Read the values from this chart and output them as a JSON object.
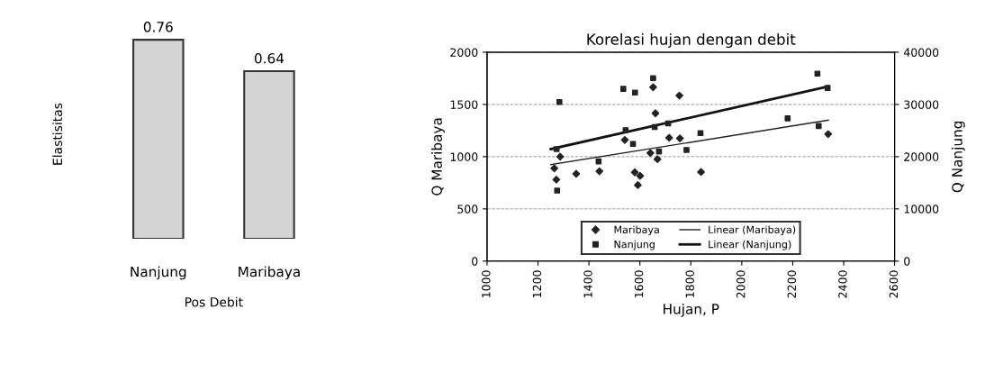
{
  "chart_data": [
    {
      "type": "bar",
      "xlabel": "Pos Debit",
      "ylabel": "Elastisitas",
      "categories": [
        "Nanjung",
        "Maribaya"
      ],
      "values": [
        0.76,
        0.64
      ],
      "color": "#d4d4d4",
      "data_labels": true,
      "tick_labels": "x"
    },
    {
      "type": "scatter",
      "title": "Korelasi hujan dengan debit",
      "xlabel": "Hujan, P",
      "ylabel": "Q Maribaya",
      "y2label": "Q Nanjung",
      "xlim": [
        1000,
        2600
      ],
      "xticks": [
        1000,
        1200,
        1400,
        1600,
        1800,
        2000,
        2200,
        2400,
        2600
      ],
      "ylim": [
        0,
        2000
      ],
      "yticks": [
        0,
        500,
        1000,
        1500,
        2000
      ],
      "y2lim": [
        0,
        40000
      ],
      "y2ticks": [
        0,
        10000,
        20000,
        30000,
        40000
      ],
      "grid": "y",
      "legend": "bottom",
      "series": [
        {
          "name": "Maribaya",
          "color": "#222222",
          "marker": "diamond",
          "x": [
            1264,
            1272,
            1287,
            1350,
            1441,
            1541,
            1580,
            1592,
            1601,
            1641,
            1652,
            1661,
            1669,
            1715,
            1755,
            1757,
            1840,
            2339
          ],
          "values": [
            888,
            780,
            1000,
            836,
            860,
            1160,
            850,
            728,
            816,
            1035,
            1665,
            1415,
            976,
            1181,
            1585,
            1175,
            853,
            1216
          ]
        },
        {
          "name": "Nanjung",
          "color": "#222222",
          "marker": "square",
          "axis": "y2",
          "x": [
            1273,
            1275,
            1284,
            1438,
            1535,
            1544,
            1573,
            1581,
            1652,
            1658,
            1675,
            1711,
            1783,
            1838,
            2180,
            2297,
            2302,
            2337
          ],
          "values": [
            21450,
            13500,
            30470,
            19100,
            32980,
            25080,
            22450,
            32270,
            35030,
            25660,
            20990,
            26360,
            21280,
            24500,
            27330,
            35900,
            25870,
            33150
          ]
        },
        {
          "name": "Linear (Maribaya)",
          "type": "line",
          "color": "#222222",
          "x": [
            1250,
            2340
          ],
          "values": [
            923,
            1350
          ]
        },
        {
          "name": "Linear (Nanjung)",
          "type": "line",
          "color": "#111111",
          "axis": "y2",
          "x": [
            1250,
            2340
          ],
          "values": [
            21450,
            33450
          ]
        }
      ]
    }
  ]
}
